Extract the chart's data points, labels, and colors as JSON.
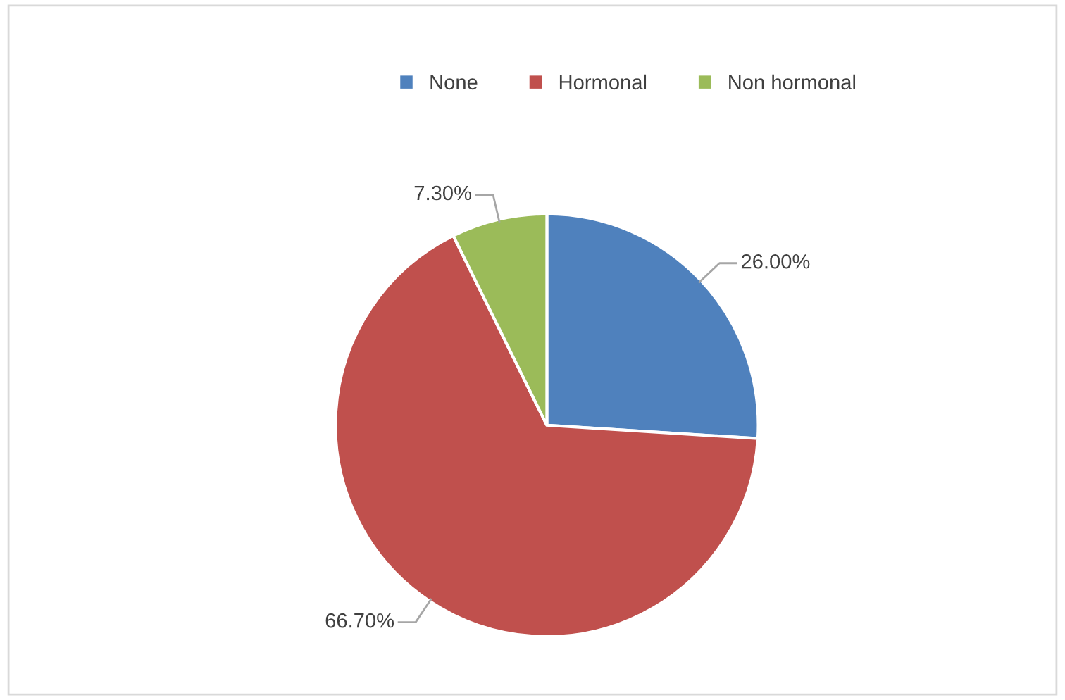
{
  "chart_data": {
    "type": "pie",
    "categories": [
      "None",
      "Hormonal",
      "Non hormonal"
    ],
    "values": [
      26.0,
      66.7,
      7.3
    ],
    "value_labels": [
      "26.00%",
      "66.70%",
      "7.30%"
    ],
    "colors": [
      "#4f81bd",
      "#c0504d",
      "#9bbb59"
    ],
    "legend": "top"
  }
}
